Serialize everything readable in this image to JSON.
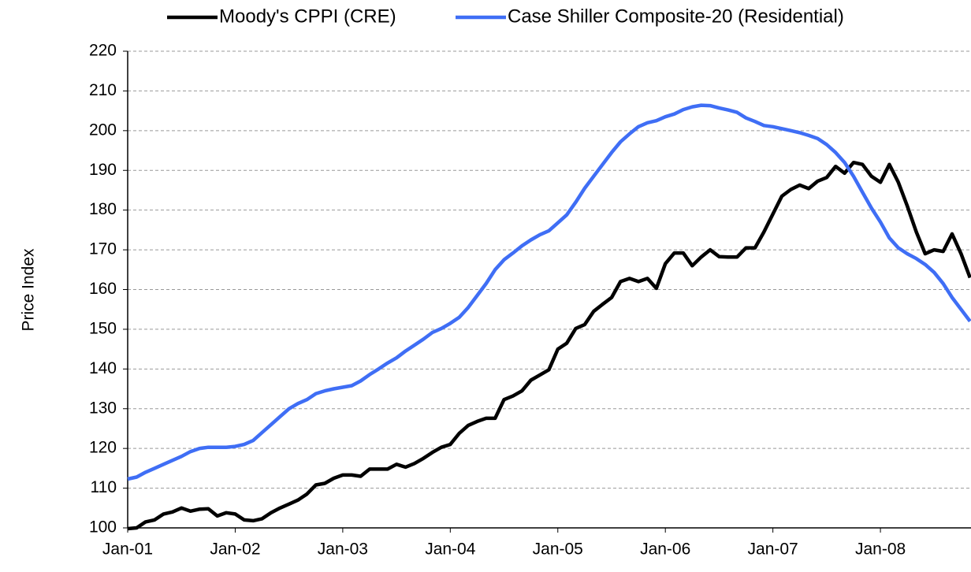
{
  "chart_data": {
    "type": "line",
    "y_label": "Price Index",
    "categories": [
      "Jan-01",
      null,
      null,
      null,
      null,
      null,
      null,
      null,
      null,
      null,
      null,
      null,
      "Jan-02",
      null,
      null,
      null,
      null,
      null,
      null,
      null,
      null,
      null,
      null,
      null,
      "Jan-03",
      null,
      null,
      null,
      null,
      null,
      null,
      null,
      null,
      null,
      null,
      null,
      "Jan-04",
      null,
      null,
      null,
      null,
      null,
      null,
      null,
      null,
      null,
      null,
      null,
      "Jan-05",
      null,
      null,
      null,
      null,
      null,
      null,
      null,
      null,
      null,
      null,
      null,
      "Jan-06",
      null,
      null,
      null,
      null,
      null,
      null,
      null,
      null,
      null,
      null,
      null,
      "Jan-07",
      null,
      null,
      null,
      null,
      null,
      null,
      null,
      null,
      null,
      null,
      null,
      "Jan-08",
      null,
      null,
      null,
      null,
      null,
      null,
      null,
      null,
      null,
      null
    ],
    "series": [
      {
        "name": "Moody's CPPI (CRE)",
        "color": "#000000",
        "values": [
          99.8,
          100,
          101.5,
          102,
          103.5,
          104,
          105,
          104.2,
          104.7,
          104.8,
          103,
          103.8,
          103.5,
          102,
          101.8,
          102.3,
          103.8,
          105,
          106,
          107,
          108.5,
          110.8,
          111.2,
          112.5,
          113.3,
          113.3,
          113,
          114.8,
          114.8,
          114.8,
          116,
          115.3,
          116.2,
          117.5,
          119,
          120.3,
          121,
          123.8,
          125.8,
          126.8,
          127.6,
          127.6,
          132.3,
          133.2,
          134.5,
          137.2,
          138.5,
          139.8,
          145,
          146.5,
          150.2,
          151.2,
          154.5,
          156.3,
          158,
          162,
          162.8,
          162,
          162.8,
          160.3,
          166.5,
          169.2,
          169.2,
          166,
          168.2,
          170,
          168.3,
          168.2,
          168.2,
          170.5,
          170.5,
          174.5,
          179,
          183.5,
          185.2,
          186.3,
          185.4,
          187.3,
          188.2,
          191,
          189.3,
          192,
          191.5,
          188.5,
          187,
          191.5,
          187,
          181,
          174.5,
          169,
          170,
          169.6,
          174,
          169,
          163
        ]
      },
      {
        "name": "Case Shiller Composite-20 (Residential)",
        "color": "#3f6ef5",
        "values": [
          112.3,
          112.8,
          114,
          115,
          116,
          117,
          118,
          119.2,
          120,
          120.3,
          120.3,
          120.3,
          120.5,
          121,
          122,
          124,
          126,
          128,
          130,
          131.3,
          132.3,
          133.8,
          134.5,
          135,
          135.4,
          135.8,
          137,
          138.6,
          140,
          141.5,
          142.8,
          144.5,
          146,
          147.5,
          149.2,
          150.2,
          151.5,
          153,
          155.5,
          158.5,
          161.5,
          165,
          167.5,
          169.2,
          171,
          172.5,
          173.8,
          174.8,
          176.8,
          178.8,
          182,
          185.5,
          188.5,
          191.5,
          194.5,
          197.2,
          199.2,
          201,
          202,
          202.5,
          203.5,
          204.2,
          205.3,
          206,
          206.4,
          206.3,
          205.7,
          205.2,
          204.6,
          203.2,
          202.3,
          201.3,
          201,
          200.5,
          200,
          199.5,
          198.8,
          198,
          196.5,
          194.5,
          192,
          188.5,
          184.5,
          180.5,
          177,
          173,
          170.5,
          169,
          167.8,
          166.3,
          164.3,
          161.5,
          158,
          155,
          152
        ]
      }
    ],
    "ylim": [
      100,
      220
    ],
    "yticks": [
      100,
      110,
      120,
      130,
      140,
      150,
      160,
      170,
      180,
      190,
      200,
      210,
      220
    ],
    "grid": true
  }
}
